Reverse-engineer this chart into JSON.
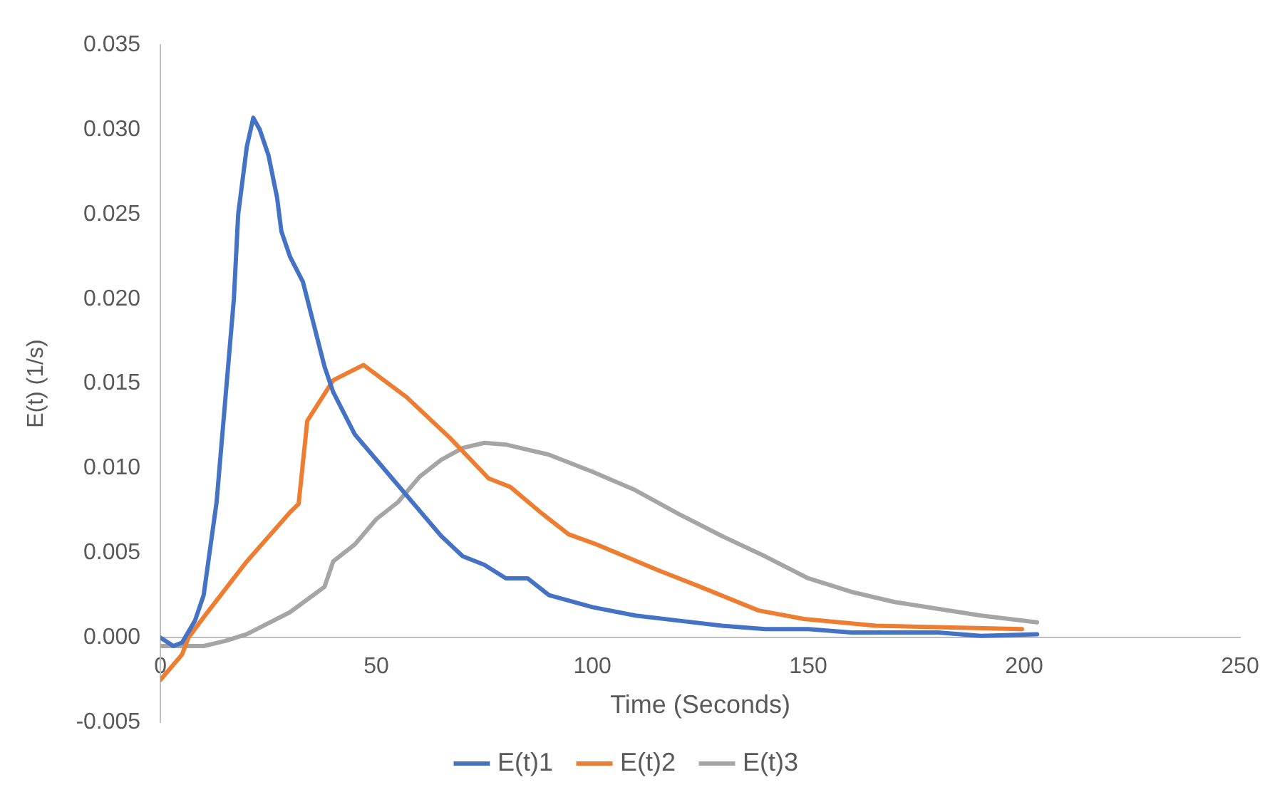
{
  "chart_data": {
    "type": "line",
    "xlabel": "Time (Seconds)",
    "ylabel": "E(t) (1/s)",
    "xlim": [
      0,
      250
    ],
    "xticks": [
      0,
      50,
      100,
      150,
      200,
      250
    ],
    "ylim": [
      -0.005,
      0.035
    ],
    "yticks": [
      {
        "value": -0.005,
        "label": "-0.005"
      },
      {
        "value": 0,
        "label": "0.000"
      },
      {
        "value": 0.005,
        "label": "0.005"
      },
      {
        "value": 0.01,
        "label": "0.010"
      },
      {
        "value": 0.015,
        "label": "0.015"
      },
      {
        "value": 0.02,
        "label": "0.020"
      },
      {
        "value": 0.025,
        "label": "0.025"
      },
      {
        "value": 0.03,
        "label": "0.030"
      },
      {
        "value": 0.035,
        "label": "0.035"
      }
    ],
    "grid": false,
    "legend": "bottom",
    "marker": "none",
    "line_style": "solid",
    "series": [
      {
        "name": "E(t)1",
        "color": "#4472c4",
        "x": [
          0,
          3,
          5,
          8,
          10,
          13,
          15,
          17,
          18,
          20,
          21.5,
          23,
          25,
          27,
          28,
          30,
          33,
          35,
          38,
          40,
          43,
          45,
          50,
          55,
          60,
          65,
          70,
          75,
          80,
          85,
          90,
          100,
          110,
          120,
          130,
          140,
          150,
          160,
          170,
          180,
          190,
          203
        ],
        "values": [
          0,
          -0.0005,
          -0.0003,
          0.001,
          0.0025,
          0.008,
          0.014,
          0.02,
          0.025,
          0.029,
          0.0307,
          0.03,
          0.0285,
          0.026,
          0.024,
          0.0225,
          0.021,
          0.019,
          0.016,
          0.0145,
          0.013,
          0.012,
          0.0105,
          0.009,
          0.0075,
          0.006,
          0.0048,
          0.0043,
          0.0035,
          0.0035,
          0.0025,
          0.0018,
          0.0013,
          0.001,
          0.0007,
          0.0005,
          0.0005,
          0.0003,
          0.0003,
          0.0003,
          0.0001,
          0.0002
        ]
      },
      {
        "name": "E(t)2",
        "color": "#ed7d31",
        "x": [
          0,
          5,
          6.5,
          10,
          20,
          30,
          32,
          34,
          40,
          47,
          57,
          67,
          76,
          81,
          88,
          94.5,
          101,
          115,
          125,
          138.5,
          149,
          165.6,
          199.5
        ],
        "values": [
          -0.0025,
          -0.001,
          0,
          0.0012,
          0.0045,
          0.0074,
          0.0079,
          0.0128,
          0.0152,
          0.0161,
          0.0142,
          0.0118,
          0.0094,
          0.0089,
          0.0074,
          0.0061,
          0.0055,
          0.004,
          0.003,
          0.0016,
          0.0011,
          0.0007,
          0.0005
        ]
      },
      {
        "name": "E(t)3",
        "color": "#a5a5a5",
        "x": [
          0,
          10,
          15,
          20,
          30,
          38,
          40,
          45,
          50,
          55,
          60,
          65,
          70,
          75,
          80,
          85,
          90,
          100,
          110,
          120,
          130,
          140,
          150,
          160,
          170,
          180,
          190,
          203
        ],
        "values": [
          -0.0005,
          -0.0005,
          -0.0002,
          0.0002,
          0.0015,
          0.003,
          0.0045,
          0.0055,
          0.007,
          0.008,
          0.0095,
          0.0105,
          0.0112,
          0.0115,
          0.0114,
          0.0111,
          0.0108,
          0.0098,
          0.0087,
          0.0073,
          0.006,
          0.0048,
          0.0035,
          0.0027,
          0.0021,
          0.0017,
          0.0013,
          0.0009
        ]
      }
    ]
  }
}
